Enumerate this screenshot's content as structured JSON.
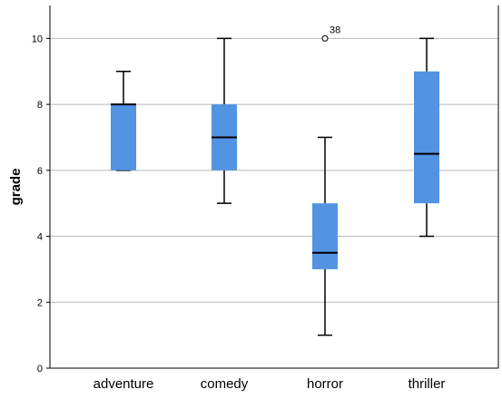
{
  "chart_data": {
    "type": "boxplot",
    "ylabel": "grade",
    "xlabel": "",
    "ylim": [
      0,
      11
    ],
    "yticks": [
      0,
      2,
      4,
      6,
      8,
      10
    ],
    "grid": "horizontal",
    "box_color": "#5294e2",
    "categories": [
      "adventure",
      "comedy",
      "horror",
      "thriller"
    ],
    "boxes": [
      {
        "category": "adventure",
        "min": 6,
        "q1": 6,
        "median": 8,
        "q3": 8,
        "max": 9,
        "outliers": []
      },
      {
        "category": "comedy",
        "min": 5,
        "q1": 6,
        "median": 7,
        "q3": 8,
        "max": 10,
        "outliers": []
      },
      {
        "category": "horror",
        "min": 1,
        "q1": 3,
        "median": 3.5,
        "q3": 5,
        "max": 7,
        "outliers": [
          {
            "value": 10,
            "label": "38"
          }
        ]
      },
      {
        "category": "thriller",
        "min": 4,
        "q1": 5,
        "median": 6.5,
        "q3": 9,
        "max": 10,
        "outliers": []
      }
    ]
  }
}
